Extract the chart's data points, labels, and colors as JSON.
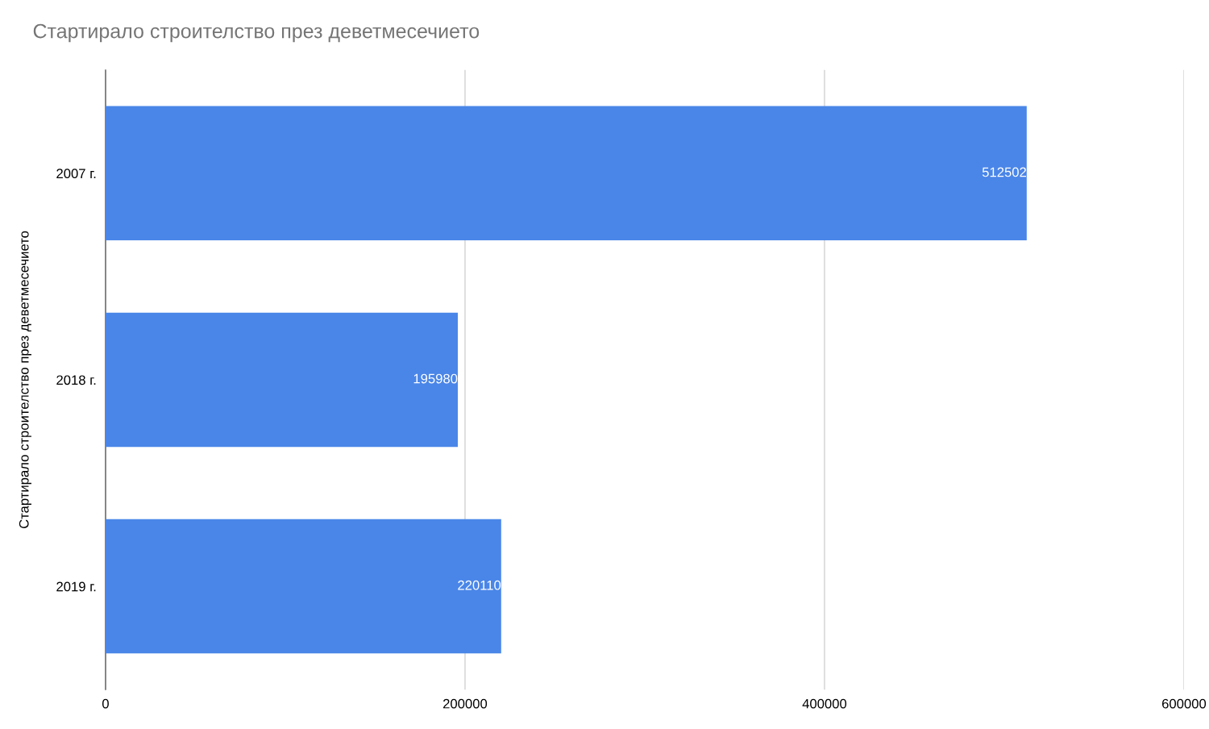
{
  "chart_data": {
    "type": "bar",
    "orientation": "horizontal",
    "title": "Стартирало строителство през деветмесечието",
    "ylabel": "Стартирало строителство през деветмесечието",
    "categories": [
      "2007 г.",
      "2018 г.",
      "2019 г."
    ],
    "values": [
      512502,
      195980,
      220110
    ],
    "color": "#4a86e8",
    "data_labels": true,
    "xlim": [
      0,
      600000
    ],
    "xticks": [
      0,
      200000,
      400000,
      600000
    ],
    "grid": "x",
    "legend": false
  }
}
